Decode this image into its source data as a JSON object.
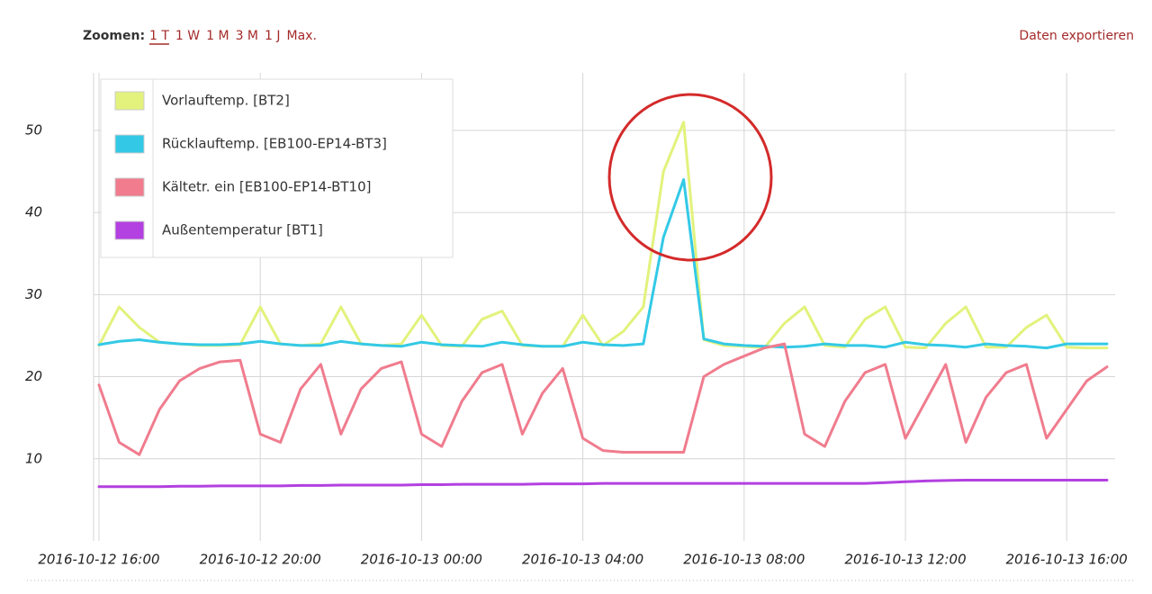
{
  "chart_data": {
    "type": "line",
    "zoom_label": "Zoomen:",
    "zoom_options": [
      "1 T",
      "1 W",
      "1 M",
      "3 M",
      "1 J",
      "Max."
    ],
    "export_label": "Daten exportieren",
    "x": [
      "2016-10-12 16:00",
      "2016-10-12 16:30",
      "2016-10-12 17:00",
      "2016-10-12 17:30",
      "2016-10-12 18:00",
      "2016-10-12 18:30",
      "2016-10-12 19:00",
      "2016-10-12 19:30",
      "2016-10-12 20:00",
      "2016-10-12 20:30",
      "2016-10-12 21:00",
      "2016-10-12 21:30",
      "2016-10-12 22:00",
      "2016-10-12 22:30",
      "2016-10-12 23:00",
      "2016-10-12 23:30",
      "2016-10-13 00:00",
      "2016-10-13 00:30",
      "2016-10-13 01:00",
      "2016-10-13 01:30",
      "2016-10-13 02:00",
      "2016-10-13 02:30",
      "2016-10-13 03:00",
      "2016-10-13 03:30",
      "2016-10-13 04:00",
      "2016-10-13 04:30",
      "2016-10-13 05:00",
      "2016-10-13 05:30",
      "2016-10-13 06:00",
      "2016-10-13 06:30",
      "2016-10-13 07:00",
      "2016-10-13 07:30",
      "2016-10-13 08:00",
      "2016-10-13 08:30",
      "2016-10-13 09:00",
      "2016-10-13 09:30",
      "2016-10-13 10:00",
      "2016-10-13 10:30",
      "2016-10-13 11:00",
      "2016-10-13 11:30",
      "2016-10-13 12:00",
      "2016-10-13 12:30",
      "2016-10-13 13:00",
      "2016-10-13 13:30",
      "2016-10-13 14:00",
      "2016-10-13 14:30",
      "2016-10-13 15:00",
      "2016-10-13 15:30",
      "2016-10-13 16:00",
      "2016-10-13 16:30",
      "2016-10-13 17:00"
    ],
    "series": [
      {
        "name": "Vorlauftemp. [BT2]",
        "color": "#e2f27c",
        "values": [
          23.8,
          28.5,
          26,
          24.2,
          24,
          23.8,
          23.8,
          23.9,
          28.5,
          24,
          23.8,
          24,
          28.5,
          24,
          23.8,
          24,
          27.5,
          23.8,
          23.7,
          27,
          28,
          23.8,
          23.7,
          23.7,
          27.5,
          23.8,
          25.5,
          28.5,
          45,
          51,
          24.5,
          23.8,
          23.7,
          23.5,
          26.5,
          28.5,
          23.8,
          23.6,
          27,
          28.5,
          23.6,
          23.5,
          26.5,
          28.5,
          23.6,
          23.6,
          26,
          27.5,
          23.6,
          23.5,
          23.5
        ]
      },
      {
        "name": "Rücklauftemp. [EB100-EP14-BT3]",
        "color": "#33c9e6",
        "values": [
          23.9,
          24.3,
          24.5,
          24.2,
          24,
          23.9,
          23.9,
          24,
          24.3,
          24,
          23.8,
          23.8,
          24.3,
          24,
          23.8,
          23.7,
          24.2,
          23.9,
          23.8,
          23.7,
          24.2,
          23.9,
          23.7,
          23.7,
          24.2,
          23.9,
          23.8,
          24,
          37,
          44,
          24.6,
          24,
          23.8,
          23.7,
          23.6,
          23.7,
          24,
          23.8,
          23.8,
          23.6,
          24.2,
          23.9,
          23.8,
          23.6,
          24,
          23.8,
          23.7,
          23.5,
          24,
          24,
          24
        ]
      },
      {
        "name": "Kältetr. ein [EB100-EP14-BT10]",
        "color": "#f07c8e",
        "values": [
          19,
          12,
          10.5,
          16,
          19.5,
          21,
          21.8,
          22,
          13,
          12,
          18.5,
          21.5,
          13,
          18.5,
          21,
          21.8,
          13,
          11.5,
          17,
          20.5,
          21.5,
          13,
          18,
          21,
          12.5,
          11,
          10.8,
          10.8,
          10.8,
          10.8,
          20,
          21.5,
          22.5,
          23.5,
          24,
          13,
          11.5,
          17,
          20.5,
          21.5,
          12.5,
          17,
          21.5,
          12,
          17.5,
          20.5,
          21.5,
          12.5,
          16,
          19.5,
          21.2
        ]
      },
      {
        "name": "Außentemperatur [BT1]",
        "color": "#b340e0",
        "values": [
          6.6,
          6.6,
          6.6,
          6.6,
          6.65,
          6.65,
          6.7,
          6.7,
          6.7,
          6.7,
          6.75,
          6.75,
          6.8,
          6.8,
          6.8,
          6.8,
          6.85,
          6.85,
          6.9,
          6.9,
          6.9,
          6.9,
          6.95,
          6.95,
          6.95,
          7,
          7,
          7,
          7,
          7,
          7,
          7,
          7,
          7,
          7,
          7,
          7,
          7,
          7,
          7.1,
          7.2,
          7.3,
          7.35,
          7.4,
          7.4,
          7.4,
          7.4,
          7.4,
          7.4,
          7.4,
          7.4
        ]
      }
    ],
    "ylim": [
      0,
      57
    ],
    "yticks": [
      10,
      20,
      30,
      40,
      50
    ],
    "xlim": [
      "2016-10-12 15:52",
      "2016-10-13 17:12"
    ],
    "xticks": [
      "2016-10-12 16:00",
      "2016-10-12 20:00",
      "2016-10-13 00:00",
      "2016-10-13 04:00",
      "2016-10-13 08:00",
      "2016-10-13 12:00",
      "2016-10-13 16:00"
    ],
    "grid": true,
    "legend": "upper left"
  }
}
